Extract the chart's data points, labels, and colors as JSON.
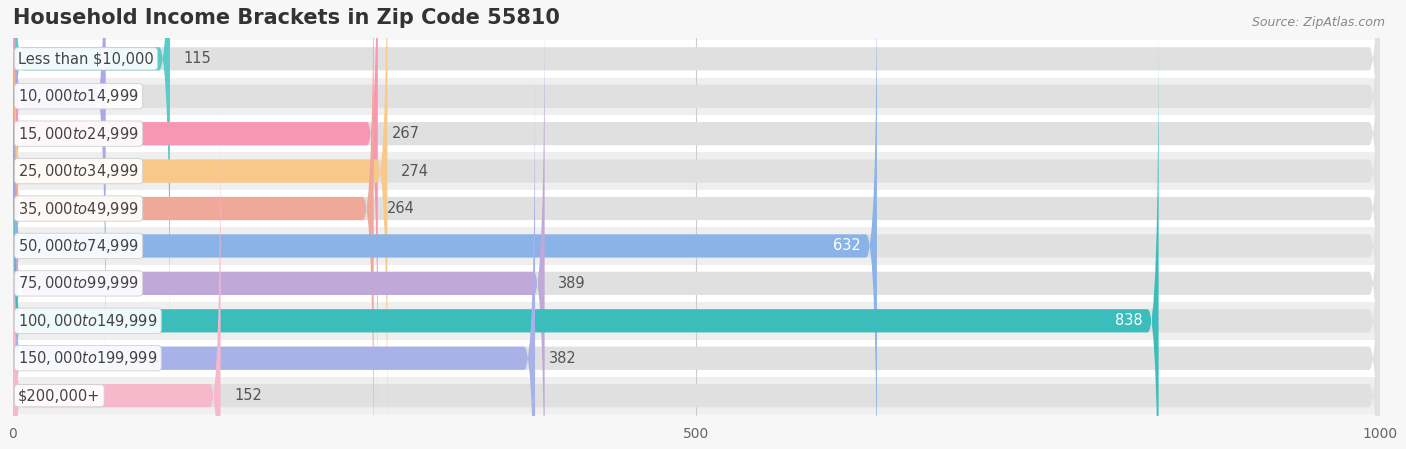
{
  "title": "Household Income Brackets in Zip Code 55810",
  "source": "Source: ZipAtlas.com",
  "categories": [
    "Less than $10,000",
    "$10,000 to $14,999",
    "$15,000 to $24,999",
    "$25,000 to $34,999",
    "$35,000 to $49,999",
    "$50,000 to $74,999",
    "$75,000 to $99,999",
    "$100,000 to $149,999",
    "$150,000 to $199,999",
    "$200,000+"
  ],
  "values": [
    115,
    68,
    267,
    274,
    264,
    632,
    389,
    838,
    382,
    152
  ],
  "bar_colors": [
    "#59ccc9",
    "#a9a9e8",
    "#f797b4",
    "#f9c98c",
    "#f0a898",
    "#8ab3e8",
    "#c0a8d8",
    "#3bbdbb",
    "#a8b2e8",
    "#f8b8cc"
  ],
  "background_color": "#f7f7f7",
  "row_colors": [
    "#ffffff",
    "#efefef"
  ],
  "bar_bg_color": "#e0e0e0",
  "xlim": [
    0,
    1000
  ],
  "xticks": [
    0,
    500,
    1000
  ],
  "title_fontsize": 15,
  "label_fontsize": 10.5,
  "tick_fontsize": 10,
  "source_fontsize": 9,
  "figsize": [
    14.06,
    4.49
  ],
  "dpi": 100
}
